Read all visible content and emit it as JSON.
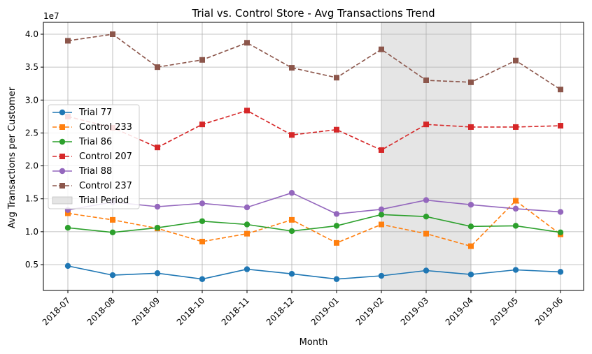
{
  "chart_data": {
    "type": "line",
    "title": "Trial vs. Control Store - Avg Transactions Trend",
    "xlabel": "Month",
    "ylabel": "Avg Transactions per Customer",
    "y_scale_label": "1e7",
    "ylim": [
      0,
      4.2
    ],
    "y_scale": 10000000,
    "yticks": [
      "0.5",
      "1.0",
      "1.5",
      "2.0",
      "2.5",
      "3.0",
      "3.5",
      "4.0"
    ],
    "categories": [
      "2018-07",
      "2018-08",
      "2018-09",
      "2018-10",
      "2018-11",
      "2018-12",
      "2019-01",
      "2019-02",
      "2019-03",
      "2019-04",
      "2019-05",
      "2019-06"
    ],
    "grid": true,
    "legend_position": "center-left",
    "trial_period": {
      "label": "Trial Period",
      "start": "2019-02",
      "end": "2019-04",
      "color": "#d3d3d3"
    },
    "series": [
      {
        "name": "Trial 77",
        "color": "#1f77b4",
        "dashed": false,
        "marker": "circle",
        "values": [
          0.48,
          0.34,
          0.37,
          0.28,
          0.43,
          0.36,
          0.28,
          0.33,
          0.41,
          0.35,
          0.42,
          0.39
        ]
      },
      {
        "name": "Control 233",
        "color": "#ff7f0e",
        "dashed": true,
        "marker": "square",
        "values": [
          1.28,
          1.18,
          1.05,
          0.85,
          0.97,
          1.18,
          0.83,
          1.11,
          0.97,
          0.78,
          1.47,
          0.96
        ]
      },
      {
        "name": "Trial 86",
        "color": "#2ca02c",
        "dashed": false,
        "marker": "circle",
        "values": [
          1.06,
          0.99,
          1.06,
          1.16,
          1.11,
          1.01,
          1.09,
          1.26,
          1.23,
          1.08,
          1.09,
          0.99
        ]
      },
      {
        "name": "Control 207",
        "color": "#d62728",
        "dashed": true,
        "marker": "square",
        "values": [
          2.75,
          2.58,
          2.28,
          2.63,
          2.84,
          2.47,
          2.55,
          2.24,
          2.63,
          2.59,
          2.59,
          2.61
        ]
      },
      {
        "name": "Trial 88",
        "color": "#9467bd",
        "dashed": false,
        "marker": "circle",
        "values": [
          1.33,
          1.45,
          1.38,
          1.43,
          1.37,
          1.59,
          1.27,
          1.34,
          1.48,
          1.41,
          1.35,
          1.3
        ]
      },
      {
        "name": "Control 237",
        "color": "#8c564b",
        "dashed": true,
        "marker": "square",
        "values": [
          3.9,
          4.0,
          3.5,
          3.61,
          3.87,
          3.49,
          3.34,
          3.77,
          3.3,
          3.27,
          3.6,
          3.16
        ]
      }
    ]
  }
}
